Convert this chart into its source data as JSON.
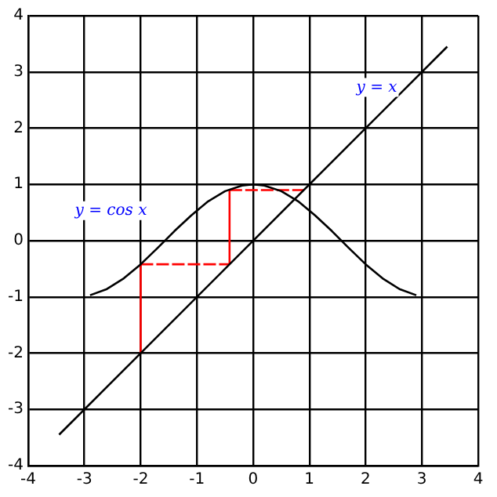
{
  "chart_data": {
    "type": "line",
    "xlim": [
      -4,
      4
    ],
    "ylim": [
      -4,
      4
    ],
    "xticks": [
      -4,
      -3,
      -2,
      -1,
      0,
      1,
      2,
      3,
      4
    ],
    "yticks": [
      -4,
      -3,
      -2,
      -1,
      0,
      1,
      2,
      3,
      4
    ],
    "grid": true,
    "legend": false,
    "marker": "none",
    "series": [
      {
        "name": "y = cos x",
        "color": "#000000",
        "x": [
          -2.9,
          -2.6,
          -2.3,
          -2,
          -1.7,
          -1.4,
          -1.1,
          -0.8,
          -0.5,
          -0.2,
          0,
          0.2,
          0.5,
          0.8,
          1.1,
          1.4,
          1.7,
          2,
          2.3,
          2.6,
          2.9
        ],
        "values": [
          -0.97,
          -0.86,
          -0.67,
          -0.42,
          -0.13,
          0.17,
          0.45,
          0.7,
          0.88,
          0.98,
          1,
          0.98,
          0.88,
          0.7,
          0.45,
          0.17,
          -0.13,
          -0.42,
          -0.67,
          -0.86,
          -0.97
        ]
      },
      {
        "name": "y = x",
        "color": "#000000",
        "x": [
          -3.45,
          3.45
        ],
        "values": [
          -3.45,
          3.45
        ]
      },
      {
        "color": "#ff0000",
        "line_style": "solid",
        "x": [
          -2,
          -2
        ],
        "values": [
          -2,
          -0.42
        ]
      },
      {
        "color": "#ff0000",
        "line_style": "dashed",
        "x": [
          -2,
          -0.42
        ],
        "values": [
          -0.42,
          -0.42
        ]
      },
      {
        "color": "#ff0000",
        "line_style": "solid",
        "x": [
          -0.42,
          -0.42
        ],
        "values": [
          -0.42,
          0.9
        ]
      },
      {
        "color": "#ff0000",
        "line_style": "dashed",
        "x": [
          -0.42,
          0.9
        ],
        "values": [
          0.9,
          0.9
        ]
      }
    ]
  }
}
